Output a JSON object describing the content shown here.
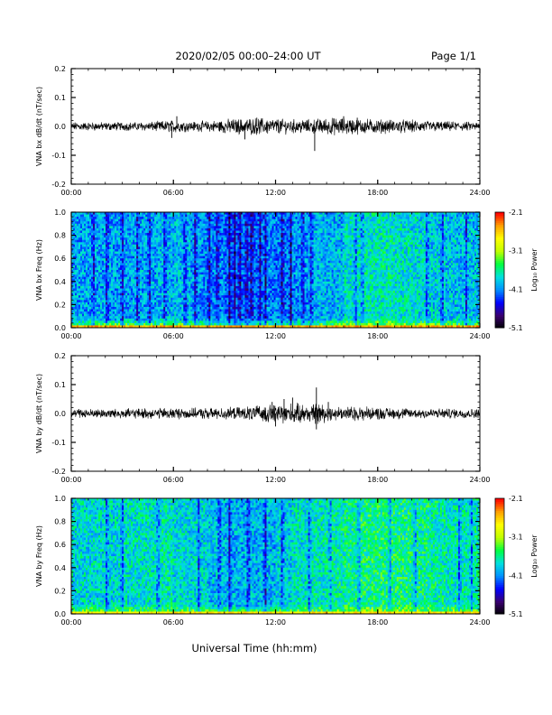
{
  "header": {
    "title": "2020/02/05  00:00–24:00 UT",
    "page": "Page 1/1"
  },
  "footer": {
    "xlabel": "Universal Time (hh:mm)"
  },
  "colors": {
    "trace": "#000000",
    "colormap": [
      "#000000",
      "#3a0070",
      "#0000ff",
      "#0090ff",
      "#00e0e0",
      "#00ff40",
      "#c0ff00",
      "#ffff00",
      "#ffa000",
      "#ff0000"
    ]
  },
  "chart_data": [
    {
      "type": "line",
      "ylabel": "VNA bx dB/dt (nT/sec)",
      "x_ticks": [
        "00:00",
        "06:00",
        "12:00",
        "18:00",
        "24:00"
      ],
      "y_ticks": [
        "0.2",
        "0.1",
        "0.0",
        "-0.1",
        "-0.2"
      ],
      "xlim": [
        0,
        24
      ],
      "ylim": [
        -0.2,
        0.2
      ],
      "series": [
        {
          "x": [
            0,
            2,
            4,
            5,
            6,
            7,
            8,
            9,
            10,
            11,
            12,
            13,
            14,
            14.5,
            15,
            16,
            17,
            18,
            20,
            22,
            24
          ],
          "amp": [
            0.012,
            0.012,
            0.012,
            0.014,
            0.018,
            0.014,
            0.015,
            0.02,
            0.022,
            0.024,
            0.022,
            0.02,
            0.02,
            0.022,
            0.024,
            0.024,
            0.022,
            0.02,
            0.018,
            0.014,
            0.012
          ],
          "spikes": [
            [
              5.9,
              -0.04
            ],
            [
              6.2,
              0.035
            ],
            [
              10.2,
              -0.045
            ],
            [
              10.9,
              0.03
            ],
            [
              14.3,
              -0.085
            ],
            [
              16.0,
              0.035
            ],
            [
              16.8,
              0.03
            ]
          ]
        }
      ]
    },
    {
      "type": "heatmap",
      "ylabel": "VNA bx Freq (Hz)",
      "x_ticks": [
        "00:00",
        "06:00",
        "12:00",
        "18:00",
        "24:00"
      ],
      "y_ticks": [
        "1.0",
        "0.8",
        "0.6",
        "0.4",
        "0.2",
        "0.0"
      ],
      "xlim": [
        0,
        24
      ],
      "ylim": [
        0.0,
        1.0
      ],
      "colorbar": {
        "label": "Log₁₀ Power",
        "ticks": [
          "-2.1",
          "-3.1",
          "-4.1",
          "-5.1"
        ],
        "range": [
          -5.1,
          -2.1
        ]
      },
      "level_by_hour": [
        -4.0,
        -4.0,
        -4.0,
        -4.0,
        -4.0,
        -3.95,
        -3.95,
        -4.05,
        -4.1,
        -4.2,
        -4.2,
        -4.1,
        -4.15,
        -4.05,
        -3.95,
        -3.95,
        -3.75,
        -3.7,
        -3.7,
        -3.75,
        -3.8,
        -3.85,
        -3.9,
        -3.9,
        -3.9
      ],
      "low_freq_level": -2.5,
      "dark_lanes_hours": [
        1.3,
        2.1,
        3.0,
        3.9,
        4.6,
        5.5,
        6.7,
        7.3,
        8.1,
        8.6,
        9.3,
        9.6,
        9.9,
        10.3,
        10.6,
        11.1,
        11.4,
        12.4,
        12.9,
        13.6,
        14.1,
        16.7,
        17.1,
        20.9,
        21.8,
        23.2
      ]
    },
    {
      "type": "line",
      "ylabel": "VNA by dB/dt (nT/sec)",
      "x_ticks": [
        "00:00",
        "06:00",
        "12:00",
        "18:00",
        "24:00"
      ],
      "y_ticks": [
        "0.2",
        "0.1",
        "0.0",
        "-0.1",
        "-0.2"
      ],
      "xlim": [
        0,
        24
      ],
      "ylim": [
        -0.2,
        0.2
      ],
      "series": [
        {
          "x": [
            0,
            2,
            4,
            5,
            6,
            7,
            8,
            9,
            10,
            11,
            12,
            13,
            14,
            14.5,
            15,
            16,
            17,
            18,
            20,
            22,
            24
          ],
          "amp": [
            0.013,
            0.013,
            0.014,
            0.015,
            0.016,
            0.015,
            0.015,
            0.016,
            0.018,
            0.022,
            0.026,
            0.028,
            0.026,
            0.03,
            0.022,
            0.02,
            0.02,
            0.017,
            0.015,
            0.014,
            0.013
          ],
          "spikes": [
            [
              11.8,
              0.04
            ],
            [
              12.5,
              0.05
            ],
            [
              13.0,
              0.055
            ],
            [
              14.4,
              0.09
            ],
            [
              14.4,
              -0.055
            ],
            [
              12.0,
              -0.045
            ],
            [
              15.1,
              0.04
            ]
          ]
        }
      ]
    },
    {
      "type": "heatmap",
      "ylabel": "VNA by Freq (Hz)",
      "x_ticks": [
        "00:00",
        "06:00",
        "12:00",
        "18:00",
        "24:00"
      ],
      "y_ticks": [
        "1.0",
        "0.8",
        "0.6",
        "0.4",
        "0.2",
        "0.0"
      ],
      "xlim": [
        0,
        24
      ],
      "ylim": [
        0.0,
        1.0
      ],
      "colorbar": {
        "label": "Log₁₀ Power",
        "ticks": [
          "-2.1",
          "-3.1",
          "-4.1",
          "-5.1"
        ],
        "range": [
          -5.1,
          -2.1
        ]
      },
      "level_by_hour": [
        -3.8,
        -3.8,
        -3.8,
        -3.75,
        -3.75,
        -3.7,
        -3.8,
        -3.8,
        -3.9,
        -3.95,
        -3.95,
        -3.95,
        -3.85,
        -3.75,
        -3.7,
        -3.65,
        -3.6,
        -3.55,
        -3.55,
        -3.55,
        -3.6,
        -3.65,
        -3.7,
        -3.7,
        -3.7
      ],
      "low_freq_level": -2.7,
      "dark_lanes_hours": [
        2.1,
        3.0,
        5.1,
        7.5,
        8.7,
        9.3,
        10.4,
        11.4,
        12.4,
        14.0,
        15.2,
        16.9,
        18.7,
        20.2,
        22.8,
        23.5
      ]
    }
  ]
}
